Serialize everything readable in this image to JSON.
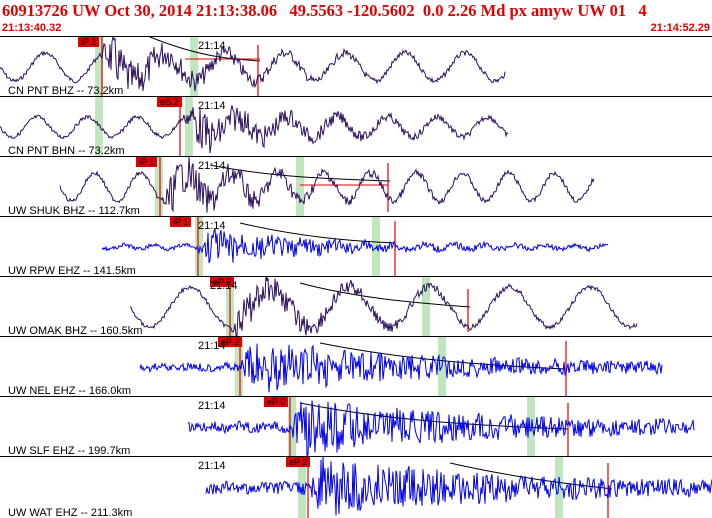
{
  "header": {
    "title": "60913726 UW Oct 30, 2014 21:13:38.06   49.5563 -120.5602  0.0 2.26 Md px amyw UW 01   4",
    "start_time": "21:13:40.32",
    "end_time": "21:14:52.29"
  },
  "colors": {
    "header_text": "#e00000",
    "trace_dark": "#2d0f5e",
    "trace_blue": "#0000ee",
    "pick": "#e00000",
    "window": "#bfe6bf"
  },
  "traces": [
    {
      "station": "CN PNT BHZ -- 73.2km",
      "time_label": "21:14",
      "pick": "iP 1",
      "color": "dark"
    },
    {
      "station": "CN PNT BHN -- 73.2km",
      "time_label": "21:14",
      "pick": "eS 2",
      "color": "dark"
    },
    {
      "station": "UW SHUK BHZ -- 112.7km",
      "time_label": "21:14",
      "pick": "iP 1",
      "color": "dark"
    },
    {
      "station": "UW RPW EHZ -- 141.5km",
      "time_label": "21:14",
      "pick": "iP 1",
      "color": "blue"
    },
    {
      "station": "UW OMAK BHZ -- 160.5km",
      "time_label": "21:14",
      "pick": "eP 2",
      "color": "dark"
    },
    {
      "station": "UW NEL EHZ -- 166.0km",
      "time_label": "21:14",
      "pick": "eP 2",
      "color": "blue"
    },
    {
      "station": "UW SLF EHZ -- 199.7km",
      "time_label": "21:14",
      "pick": "eP 0",
      "color": "blue"
    },
    {
      "station": "UW WAT EHZ -- 211.3km",
      "time_label": "21:14",
      "pick": "eP 2",
      "color": "blue"
    }
  ]
}
